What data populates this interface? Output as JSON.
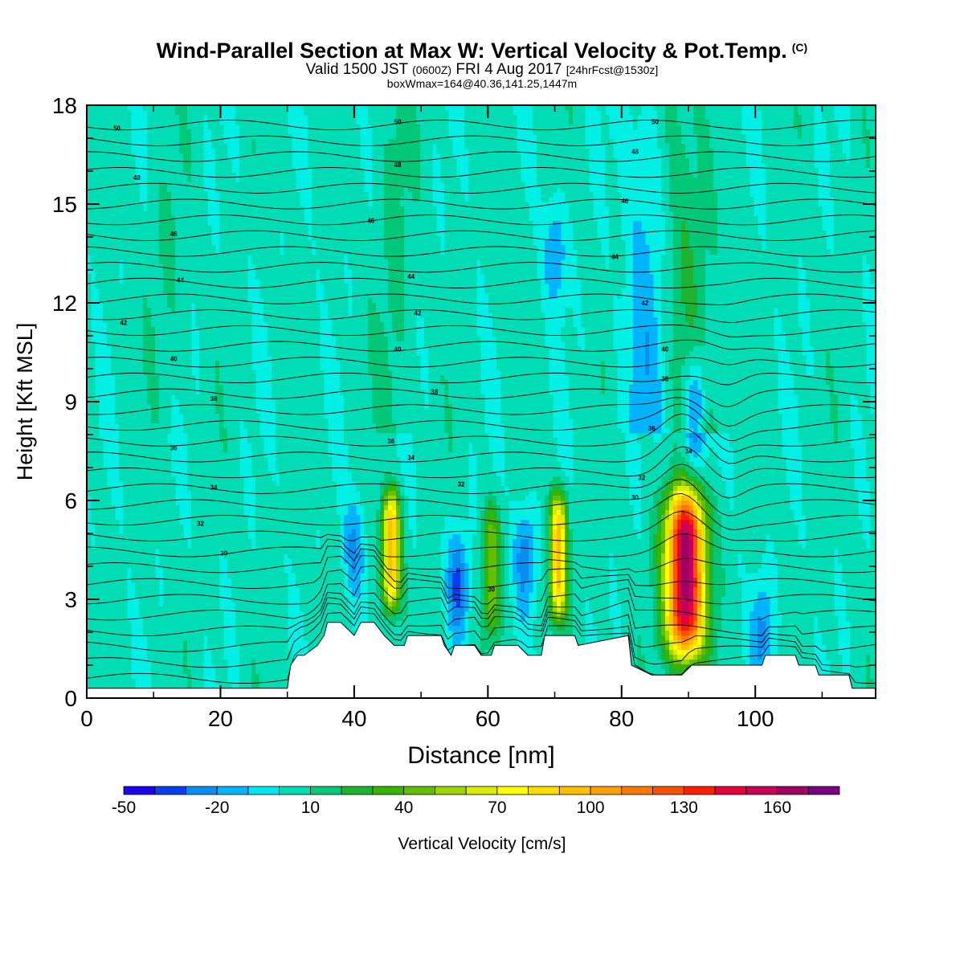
{
  "title": {
    "main": "Wind-Parallel Section at Max W: Vertical Velocity & Pot.Temp.",
    "copyright": "(C)",
    "valid_prefix": "Valid 1500 JST",
    "utc": "(0600Z)",
    "valid_date": "FRI 4 Aug 2017",
    "fcst": "[24hrFcst@1530z]",
    "boxwmax": "boxWmax=164@40.36,141.25,1447m"
  },
  "chart_data": {
    "type": "heatmap",
    "xlabel": "Distance [nm]",
    "ylabel": "Height [Kft MSL]",
    "xlim": [
      0,
      118
    ],
    "ylim": [
      0,
      18
    ],
    "x_ticks": [
      0,
      20,
      40,
      60,
      80,
      100
    ],
    "y_ticks": [
      0,
      3,
      6,
      9,
      12,
      15,
      18
    ],
    "colorbar": {
      "label": "Vertical Velocity [cm/s]",
      "tick_labels": [
        "-50",
        "-20",
        "10",
        "40",
        "70",
        "100",
        "130",
        "160"
      ],
      "tick_values": [
        -50,
        -20,
        10,
        40,
        70,
        100,
        130,
        160
      ],
      "bins": [
        -50,
        -40,
        -30,
        -20,
        -10,
        0,
        10,
        20,
        30,
        40,
        50,
        60,
        70,
        80,
        90,
        100,
        110,
        120,
        130,
        140,
        150,
        160,
        170,
        180
      ],
      "colors": [
        "#1e00f0",
        "#0a3cf0",
        "#0a8cf0",
        "#00b4ff",
        "#00e6f0",
        "#00dcb4",
        "#00c878",
        "#1eb432",
        "#37b400",
        "#64be00",
        "#a0d200",
        "#dcec00",
        "#ffff00",
        "#ffdc00",
        "#ffbe00",
        "#ffa000",
        "#ff7800",
        "#ff5000",
        "#ff1e00",
        "#e6003c",
        "#c8005a",
        "#a00064",
        "#780082"
      ]
    },
    "background_color": "#00f0e6",
    "updrafts": [
      {
        "x": 45.5,
        "z_base": 2.3,
        "z_top": 6.6,
        "w_max": 95
      },
      {
        "x": 60.5,
        "z_base": 1.5,
        "z_top": 6.3,
        "w_max": 45
      },
      {
        "x": 70.5,
        "z_base": 2.0,
        "z_top": 6.6,
        "w_max": 90
      },
      {
        "x": 89.5,
        "z_base": 0.7,
        "z_top": 6.8,
        "w_max": 164
      }
    ],
    "downdrafts": [
      {
        "x": 55.5,
        "z_center": 3.5,
        "w_min": -35
      },
      {
        "x": 65.5,
        "z_center": 4.3,
        "w_min": -30
      },
      {
        "x": 91,
        "z_center": 9.0,
        "w_min": -40
      },
      {
        "x": 40,
        "z_center": 4.5,
        "w_min": -25
      },
      {
        "x": 70,
        "z_center": 13.5,
        "w_min": -25
      },
      {
        "x": 101,
        "z_center": 2.0,
        "w_min": -25
      }
    ],
    "terrain_x": [
      0,
      30,
      30.5,
      31.5,
      32.5,
      34.5,
      35.5,
      36,
      38,
      40,
      41,
      43,
      44.5,
      46,
      47.5,
      48,
      53,
      53.5,
      54.5,
      55,
      58,
      59,
      60.5,
      61,
      64.5,
      66,
      68,
      68.5,
      73,
      73.5,
      81,
      81.5,
      84.5,
      85,
      89,
      90.5,
      92,
      101,
      101.5,
      106,
      106.5,
      109,
      109.5,
      114,
      114.5,
      118
    ],
    "terrain_z": [
      0.3,
      0.3,
      1.0,
      1.3,
      1.3,
      1.6,
      1.9,
      2.3,
      2.3,
      1.9,
      2.3,
      2.3,
      1.9,
      1.6,
      1.6,
      1.9,
      1.9,
      1.6,
      1.3,
      1.6,
      1.6,
      1.3,
      1.3,
      1.6,
      1.6,
      1.3,
      1.3,
      1.9,
      1.9,
      1.6,
      1.9,
      1.0,
      0.7,
      0.7,
      0.7,
      1.0,
      1.0,
      1.0,
      1.3,
      1.3,
      1.0,
      1.0,
      0.7,
      0.7,
      0.3,
      0.3
    ],
    "theta_labels": [
      {
        "text": "50",
        "x": 4.5,
        "z": 17.3
      },
      {
        "text": "48",
        "x": 7.5,
        "z": 15.8
      },
      {
        "text": "46",
        "x": 13,
        "z": 14.1
      },
      {
        "text": "44",
        "x": 14,
        "z": 12.7
      },
      {
        "text": "42",
        "x": 5.5,
        "z": 11.4
      },
      {
        "text": "40",
        "x": 13,
        "z": 10.3
      },
      {
        "text": "38",
        "x": 19,
        "z": 9.1
      },
      {
        "text": "36",
        "x": 13,
        "z": 7.6
      },
      {
        "text": "34",
        "x": 19,
        "z": 6.4
      },
      {
        "text": "32",
        "x": 17,
        "z": 5.3
      },
      {
        "text": "30",
        "x": 20.5,
        "z": 4.4
      },
      {
        "text": "50",
        "x": 46.5,
        "z": 17.5
      },
      {
        "text": "48",
        "x": 46.5,
        "z": 16.2
      },
      {
        "text": "46",
        "x": 42.5,
        "z": 14.5
      },
      {
        "text": "44",
        "x": 48.5,
        "z": 12.8
      },
      {
        "text": "42",
        "x": 49.5,
        "z": 11.7
      },
      {
        "text": "40",
        "x": 46.5,
        "z": 10.6
      },
      {
        "text": "38",
        "x": 52,
        "z": 9.3
      },
      {
        "text": "36",
        "x": 45.5,
        "z": 7.8
      },
      {
        "text": "34",
        "x": 48.5,
        "z": 7.3
      },
      {
        "text": "32",
        "x": 56,
        "z": 6.5
      },
      {
        "text": "30",
        "x": 60.5,
        "z": 3.3
      },
      {
        "text": "50",
        "x": 85,
        "z": 17.5
      },
      {
        "text": "48",
        "x": 82,
        "z": 16.6
      },
      {
        "text": "46",
        "x": 80.5,
        "z": 15.1
      },
      {
        "text": "44",
        "x": 79,
        "z": 13.4
      },
      {
        "text": "42",
        "x": 83.5,
        "z": 12.0
      },
      {
        "text": "40",
        "x": 86.5,
        "z": 10.6
      },
      {
        "text": "38",
        "x": 86.5,
        "z": 9.7
      },
      {
        "text": "36",
        "x": 84.5,
        "z": 8.2
      },
      {
        "text": "34",
        "x": 90,
        "z": 7.5
      },
      {
        "text": "32",
        "x": 83,
        "z": 6.7
      },
      {
        "text": "30",
        "x": 82,
        "z": 6.1
      }
    ]
  }
}
